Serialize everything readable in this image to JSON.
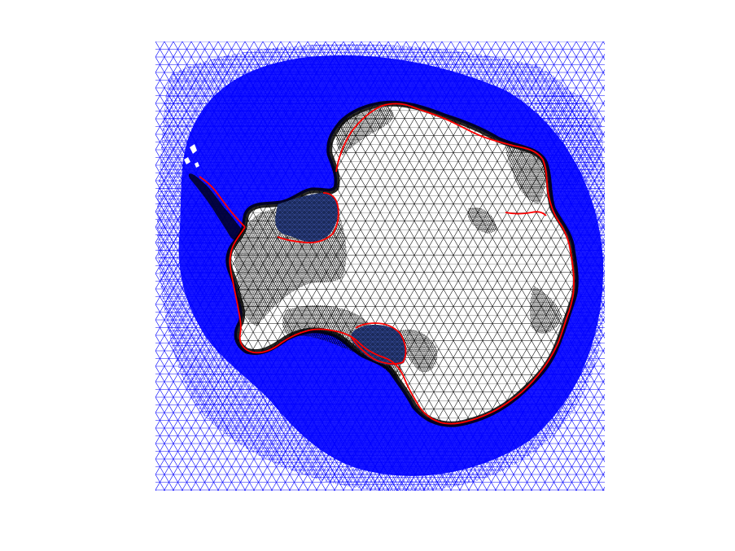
{
  "figure": {
    "background_color": "#ffffff"
  },
  "mesh_plot": {
    "type": "triangular-mesh",
    "axes_visible": false,
    "grid": false,
    "legend": "none",
    "ocean_mesh_color": "#0000ff",
    "ice_mesh_color": "#000000",
    "ice_fill_color": "#ffffff",
    "grounding_line_color": "#ff0000",
    "ice_shelf_fill_color": "#1b2a5a",
    "regions": [
      {
        "name": "ocean",
        "color": "#0000ff"
      },
      {
        "name": "ice-sheet",
        "color": "#000000"
      },
      {
        "name": "ice-shelf",
        "color": "#1b2a5a"
      },
      {
        "name": "grounding-line",
        "color": "#ff0000"
      }
    ]
  }
}
